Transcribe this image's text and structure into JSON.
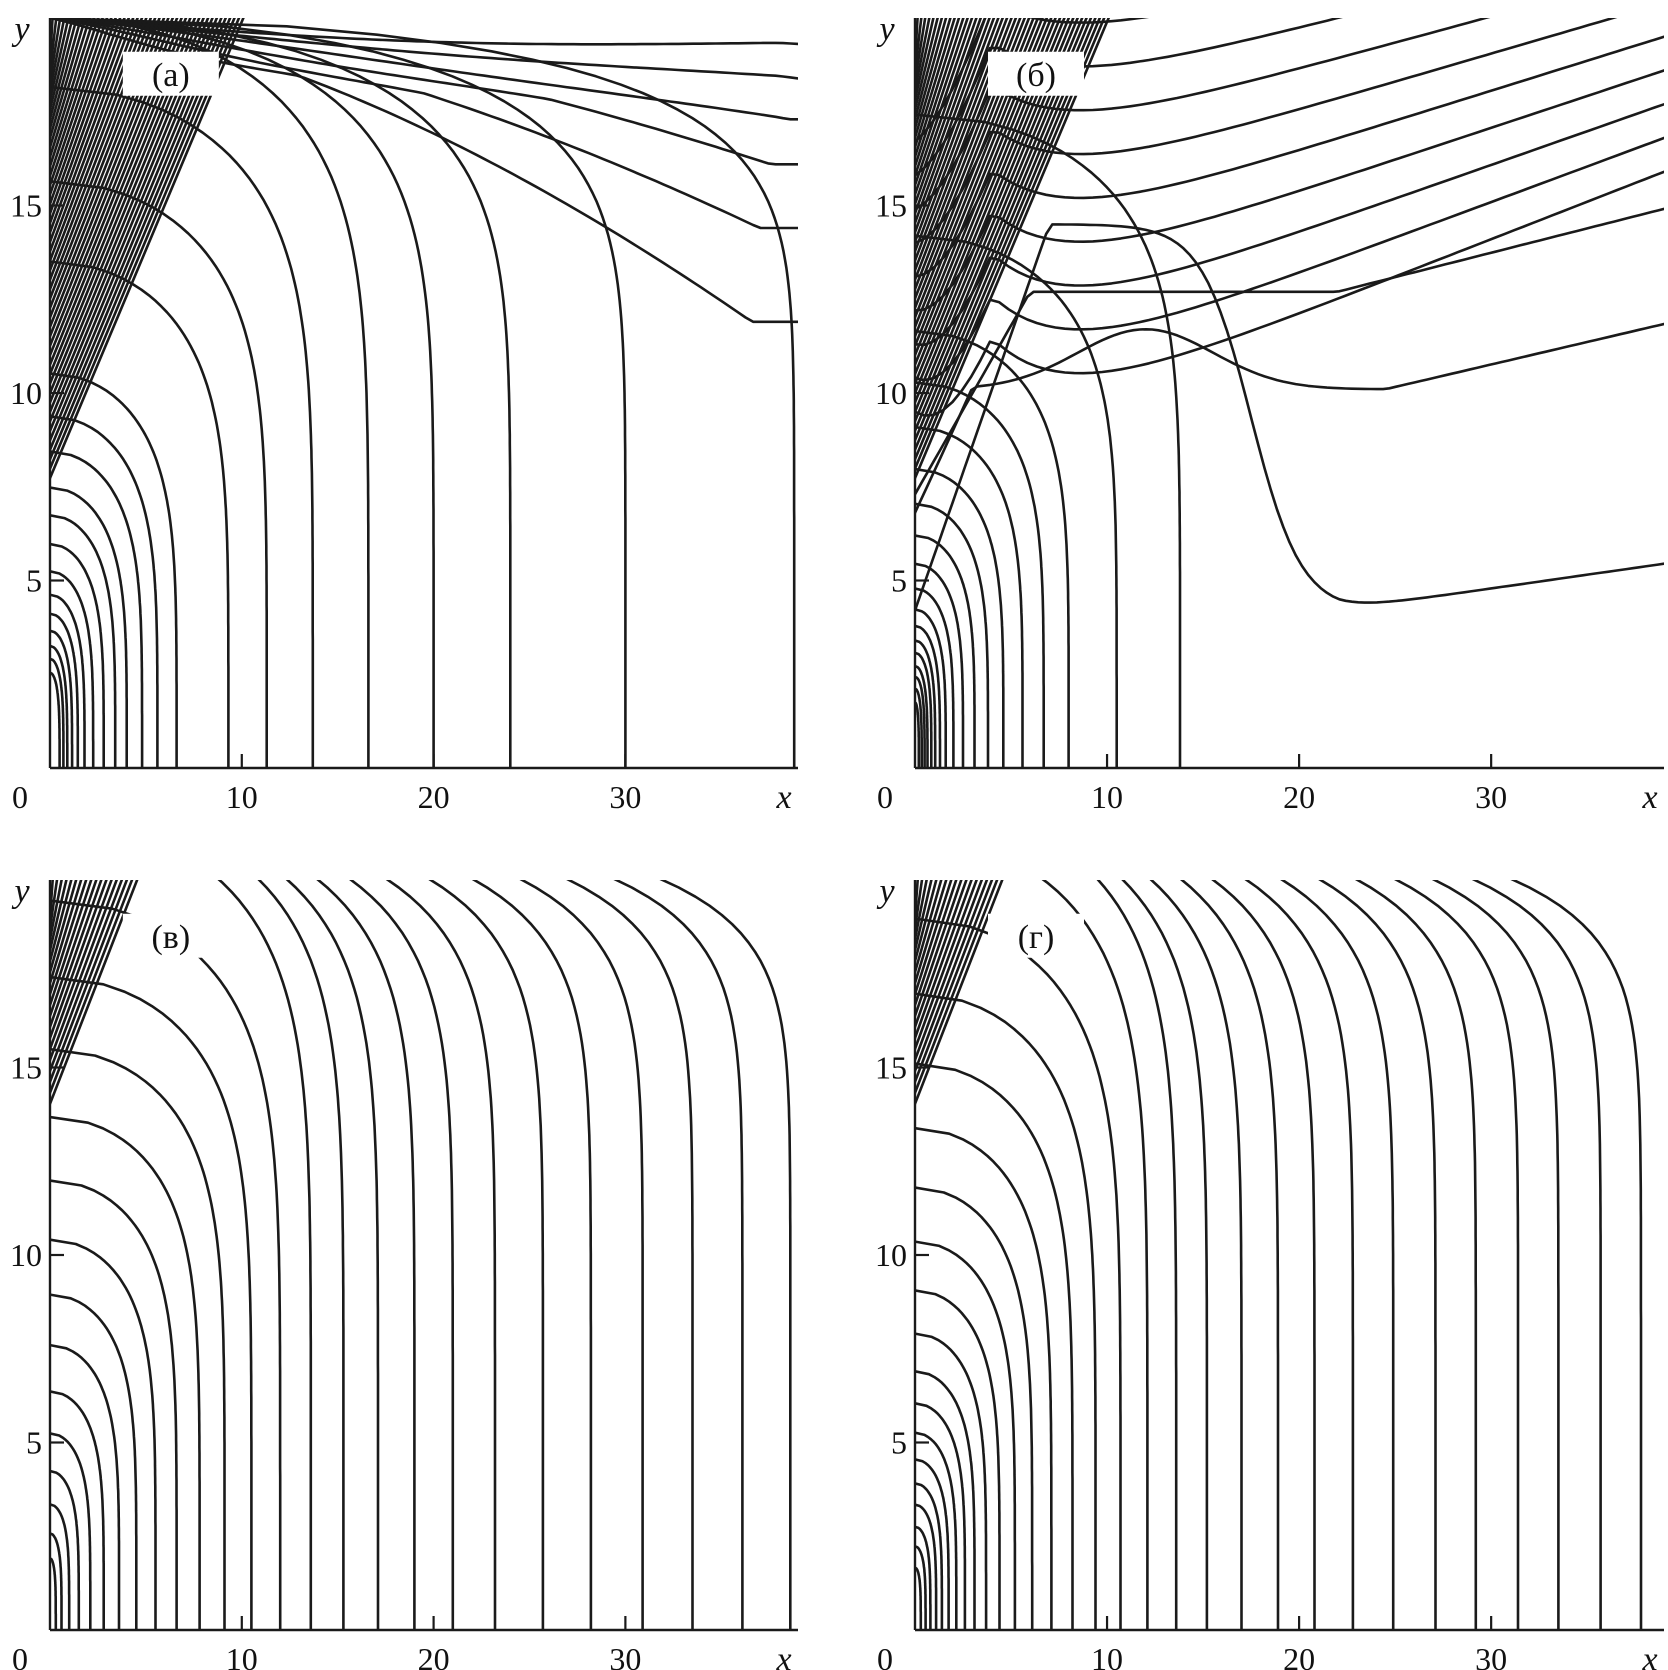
{
  "chart_data": [
    {
      "type": "contour",
      "panel_label": "(а)",
      "xlabel": "x",
      "ylabel": "y",
      "xlim": [
        0,
        39
      ],
      "ylim": [
        0,
        20
      ],
      "x_ticks": [
        "0",
        "10",
        "20",
        "30"
      ],
      "y_ticks": [
        "5",
        "10",
        "15"
      ],
      "contour_field": "free-fall family",
      "axis_intercepts_x": [
        0.5,
        0.7,
        0.9,
        1.15,
        1.45,
        1.8,
        2.25,
        2.8,
        3.4,
        4.0,
        4.8,
        5.6,
        6.6,
        9.3,
        11.3,
        13.7,
        16.6,
        20.0,
        24.0,
        30.0,
        38.8
      ],
      "far_field_lines": [
        {
          "x_start": 0.2,
          "y_start": 19.9,
          "y_at_right": 12.2,
          "peak_x": 13.0
        },
        {
          "x_start": 0.2,
          "y_start": 19.9,
          "y_at_right": 14.7,
          "peak_x": 19.5
        },
        {
          "x_start": 0.2,
          "y_start": 19.9,
          "y_at_right": 16.4,
          "peak_x": 26.0
        },
        {
          "x_start": 0.2,
          "y_start": 19.9,
          "y_at_right": 17.6,
          "peak_x": 38.0
        },
        {
          "x_start": 0.2,
          "y_start": 19.9,
          "y_at_right": 18.6,
          "peak_x": 38.0
        },
        {
          "x_start": 0.2,
          "y_start": 19.9,
          "y_at_right": 19.4,
          "peak_x": 38.0
        }
      ]
    },
    {
      "type": "contour",
      "panel_label": "(б)",
      "xlabel": "x",
      "ylabel": "y",
      "xlim": [
        0,
        39
      ],
      "ylim": [
        0,
        20
      ],
      "x_ticks": [
        "0",
        "10",
        "20",
        "30"
      ],
      "y_ticks": [
        "5",
        "10",
        "15"
      ],
      "axis_intercepts_x": [
        0.2,
        0.35,
        0.5,
        0.65,
        0.85,
        1.05,
        1.3,
        1.6,
        2.0,
        2.5,
        3.1,
        3.8,
        4.6,
        5.6,
        6.7,
        8.0,
        10.5,
        13.8
      ],
      "special_curves": [
        {
          "name": "lower-bulge",
          "min_y": 4.2,
          "min_x": 22,
          "y_at_right": 5.5
        },
        {
          "name": "middle-bulge",
          "min_y": 10.1,
          "min_x": 24.5,
          "y_at_right": 11.9
        },
        {
          "name": "upper-shoulder",
          "y_plateau": 12.7,
          "y_at_right": 14.8
        }
      ]
    },
    {
      "type": "contour",
      "panel_label": "(в)",
      "xlabel": "x",
      "ylabel": "y",
      "xlim": [
        0,
        39
      ],
      "ylim": [
        0,
        20
      ],
      "x_ticks": [
        "0",
        "10",
        "20",
        "30"
      ],
      "y_ticks": [
        "5",
        "10",
        "15"
      ],
      "axis_intercepts_x": [
        0.3,
        0.6,
        1.0,
        1.5,
        2.1,
        2.8,
        3.6,
        4.5,
        5.5,
        6.6,
        7.8,
        9.1,
        10.5,
        12.0,
        13.6,
        15.3,
        17.1,
        19.0,
        21.0,
        23.2,
        25.7,
        28.2,
        30.9,
        33.5,
        36.1,
        38.6
      ]
    },
    {
      "type": "contour",
      "panel_label": "(г)",
      "xlabel": "x",
      "ylabel": "y",
      "xlim": [
        0,
        39
      ],
      "ylim": [
        0,
        20
      ],
      "x_ticks": [
        "0",
        "10",
        "20",
        "30"
      ],
      "y_ticks": [
        "5",
        "10",
        "15"
      ],
      "axis_intercepts_x": [
        0.3,
        0.55,
        0.8,
        1.1,
        1.4,
        1.75,
        2.15,
        2.6,
        3.1,
        3.7,
        4.4,
        5.2,
        6.1,
        7.1,
        8.2,
        9.4,
        10.7,
        12.1,
        13.6,
        15.2,
        17.0,
        18.9,
        20.8,
        22.8,
        24.9,
        27.1,
        29.2,
        31.4,
        33.5,
        35.7,
        37.8
      ]
    }
  ]
}
